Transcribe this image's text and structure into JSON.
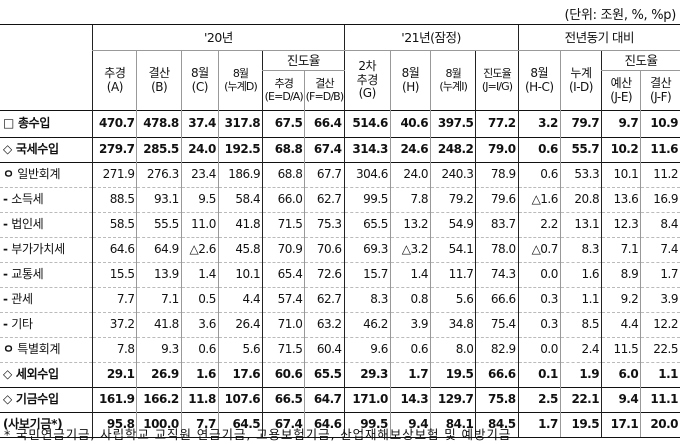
{
  "unit_note": "(단위: 조원, %, %p)",
  "header": {
    "group_20": "'20년",
    "group_21": "'21년(잠정)",
    "group_yoy": "전년동기 대비",
    "jindo_20": "진도율",
    "jindo_21": "진도율",
    "jindo_yoy": "진도율",
    "col_chugyeong_a": [
      "추경",
      "(A)"
    ],
    "col_gyeolsan_b": [
      "결산",
      "(B)"
    ],
    "col_aug_c": [
      "8월",
      "(C)"
    ],
    "col_aug_d": [
      "8월",
      "(누계D)"
    ],
    "col_jindo_e": [
      "추경",
      "(E=D/A)"
    ],
    "col_jindo_f": [
      "결산",
      "(F=D/B)"
    ],
    "col_2cha_g": [
      "2차",
      "추경",
      "(G)"
    ],
    "col_aug_h": [
      "8월",
      "(H)"
    ],
    "col_aug_i": [
      "8월",
      "(누계I)"
    ],
    "col_jindo_j": [
      "진도율",
      "(J=I/G)"
    ],
    "col_aug_hc": [
      "8월",
      "(H-C)"
    ],
    "col_nugye_id": [
      "누계",
      "(I-D)"
    ],
    "col_yesan_je": [
      "예산",
      "(J-E)"
    ],
    "col_gyeolsan_jf": [
      "결산",
      "(J-F)"
    ]
  },
  "rows": [
    {
      "sym": "□",
      "label": "총수입",
      "bold": true,
      "values": [
        "470.7",
        "478.8",
        "37.4",
        "317.8",
        "67.5",
        "66.4",
        "514.6",
        "40.6",
        "397.5",
        "77.2",
        "3.2",
        "79.7",
        "9.7",
        "10.9"
      ]
    },
    {
      "sym": "◇",
      "label": "국세수입",
      "bold": true,
      "values": [
        "279.7",
        "285.5",
        "24.0",
        "192.5",
        "68.8",
        "67.4",
        "314.3",
        "24.6",
        "248.2",
        "79.0",
        "0.6",
        "55.7",
        "10.2",
        "11.6"
      ]
    },
    {
      "sym": "ㅇ",
      "label": "일반회계",
      "bold": false,
      "values": [
        "271.9",
        "276.3",
        "23.4",
        "186.9",
        "68.8",
        "67.7",
        "304.6",
        "24.0",
        "240.3",
        "78.9",
        "0.6",
        "53.3",
        "10.1",
        "11.2"
      ]
    },
    {
      "sym": "-",
      "label": "소득세",
      "bold": false,
      "values": [
        "88.5",
        "93.1",
        "9.5",
        "58.4",
        "66.0",
        "62.7",
        "99.5",
        "7.8",
        "79.2",
        "79.6",
        "△1.6",
        "20.8",
        "13.6",
        "16.9"
      ]
    },
    {
      "sym": "-",
      "label": "법인세",
      "bold": false,
      "values": [
        "58.5",
        "55.5",
        "11.0",
        "41.8",
        "71.5",
        "75.3",
        "65.5",
        "13.2",
        "54.9",
        "83.7",
        "2.2",
        "13.1",
        "12.3",
        "8.4"
      ]
    },
    {
      "sym": "-",
      "label": "부가가치세",
      "bold": false,
      "values": [
        "64.6",
        "64.9",
        "△2.6",
        "45.8",
        "70.9",
        "70.6",
        "69.3",
        "△3.2",
        "54.1",
        "78.0",
        "△0.7",
        "8.3",
        "7.1",
        "7.4"
      ]
    },
    {
      "sym": "-",
      "label": "교통세",
      "bold": false,
      "values": [
        "15.5",
        "13.9",
        "1.4",
        "10.1",
        "65.4",
        "72.6",
        "15.7",
        "1.4",
        "11.7",
        "74.3",
        "0.0",
        "1.6",
        "8.9",
        "1.7"
      ]
    },
    {
      "sym": "-",
      "label": "관세",
      "bold": false,
      "values": [
        "7.7",
        "7.1",
        "0.5",
        "4.4",
        "57.4",
        "62.7",
        "8.3",
        "0.8",
        "5.6",
        "66.6",
        "0.3",
        "1.1",
        "9.2",
        "3.9"
      ]
    },
    {
      "sym": "-",
      "label": "기타",
      "bold": false,
      "values": [
        "37.2",
        "41.8",
        "3.6",
        "26.4",
        "71.0",
        "63.2",
        "46.2",
        "3.9",
        "34.8",
        "75.4",
        "0.3",
        "8.5",
        "4.4",
        "12.2"
      ]
    },
    {
      "sym": "ㅇ",
      "label": "특별회계",
      "bold": false,
      "values": [
        "7.8",
        "9.3",
        "0.6",
        "5.6",
        "71.5",
        "60.4",
        "9.6",
        "0.6",
        "8.0",
        "82.9",
        "0.0",
        "2.4",
        "11.5",
        "22.5"
      ]
    },
    {
      "sym": "◇",
      "label": "세외수입",
      "bold": true,
      "values": [
        "29.1",
        "26.9",
        "1.6",
        "17.6",
        "60.6",
        "65.5",
        "29.3",
        "1.7",
        "19.5",
        "66.6",
        "0.1",
        "1.9",
        "6.0",
        "1.1"
      ]
    },
    {
      "sym": "◇",
      "label": "기금수입",
      "bold": true,
      "values": [
        "161.9",
        "166.2",
        "11.8",
        "107.6",
        "66.5",
        "64.7",
        "171.0",
        "14.3",
        "129.7",
        "75.8",
        "2.5",
        "22.1",
        "9.4",
        "11.1"
      ]
    },
    {
      "sym": "",
      "label": "(사보기금*)",
      "bold": true,
      "values": [
        "95.8",
        "100.0",
        "7.7",
        "64.5",
        "67.4",
        "64.6",
        "99.5",
        "9.4",
        "84.1",
        "84.5",
        "1.7",
        "19.5",
        "17.1",
        "20.0"
      ]
    }
  ],
  "footnote": "* 국민연금기금, 사립학교 교직원 연금기금, 고용보험기금, 산업재해보상보험 및 예방기금"
}
